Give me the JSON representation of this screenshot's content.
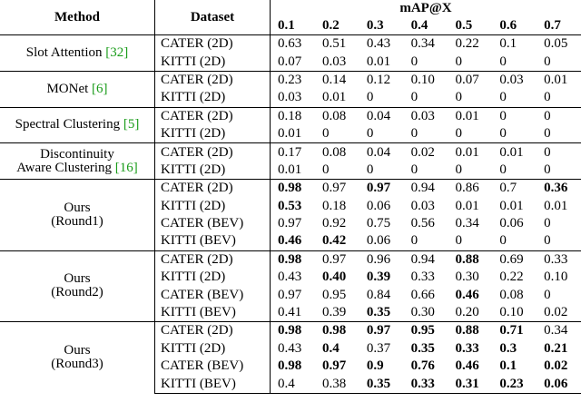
{
  "header": {
    "method": "Method",
    "dataset": "Dataset",
    "metric": "mAP@X",
    "thresholds": [
      "0.1",
      "0.2",
      "0.3",
      "0.4",
      "0.5",
      "0.6",
      "0.7"
    ]
  },
  "groups": [
    {
      "method": [
        "Slot Attention"
      ],
      "ref": "[32]",
      "rows": [
        {
          "dataset": "CATER (2D)",
          "values": [
            "0.63",
            "0.51",
            "0.43",
            "0.34",
            "0.22",
            "0.1",
            "0.05"
          ],
          "bold": []
        },
        {
          "dataset": "KITTI (2D)",
          "values": [
            "0.07",
            "0.03",
            "0.01",
            "0",
            "0",
            "0",
            "0"
          ],
          "bold": []
        }
      ]
    },
    {
      "method": [
        "MONet"
      ],
      "ref": "[6]",
      "rows": [
        {
          "dataset": "CATER (2D)",
          "values": [
            "0.23",
            "0.14",
            "0.12",
            "0.10",
            "0.07",
            "0.03",
            "0.01"
          ],
          "bold": []
        },
        {
          "dataset": "KITTI (2D)",
          "values": [
            "0.03",
            "0.01",
            "0",
            "0",
            "0",
            "0",
            "0"
          ],
          "bold": []
        }
      ]
    },
    {
      "method": [
        "Spectral Clustering"
      ],
      "ref": "[5]",
      "rows": [
        {
          "dataset": "CATER (2D)",
          "values": [
            "0.18",
            "0.08",
            "0.04",
            "0.03",
            "0.01",
            "0",
            "0"
          ],
          "bold": []
        },
        {
          "dataset": "KITTI (2D)",
          "values": [
            "0.01",
            "0",
            "0",
            "0",
            "0",
            "0",
            "0"
          ],
          "bold": []
        }
      ]
    },
    {
      "method": [
        "Discontinuity",
        "Aware Clustering"
      ],
      "ref": "[16]",
      "rows": [
        {
          "dataset": "CATER (2D)",
          "values": [
            "0.17",
            "0.08",
            "0.04",
            "0.02",
            "0.01",
            "0.01",
            "0"
          ],
          "bold": []
        },
        {
          "dataset": "KITTI (2D)",
          "values": [
            "0.01",
            "0",
            "0",
            "0",
            "0",
            "0",
            "0"
          ],
          "bold": []
        }
      ]
    },
    {
      "method": [
        "Ours",
        "(Round1)"
      ],
      "rows": [
        {
          "dataset": "CATER (2D)",
          "values": [
            "0.98",
            "0.97",
            "0.97",
            "0.94",
            "0.86",
            "0.7",
            "0.36"
          ],
          "bold": [
            0,
            2,
            6
          ]
        },
        {
          "dataset": "KITTI (2D)",
          "values": [
            "0.53",
            "0.18",
            "0.06",
            "0.03",
            "0.01",
            "0.01",
            "0.01"
          ],
          "bold": [
            0
          ]
        },
        {
          "dataset": "CATER (BEV)",
          "values": [
            "0.97",
            "0.92",
            "0.75",
            "0.56",
            "0.34",
            "0.06",
            "0"
          ],
          "bold": []
        },
        {
          "dataset": "KITTI (BEV)",
          "values": [
            "0.46",
            "0.42",
            "0.06",
            "0",
            "0",
            "0",
            "0"
          ],
          "bold": [
            0,
            1
          ]
        }
      ]
    },
    {
      "method": [
        "Ours",
        "(Round2)"
      ],
      "rows": [
        {
          "dataset": "CATER (2D)",
          "values": [
            "0.98",
            "0.97",
            "0.96",
            "0.94",
            "0.88",
            "0.69",
            "0.33"
          ],
          "bold": [
            0,
            4
          ]
        },
        {
          "dataset": "KITTI (2D)",
          "values": [
            "0.43",
            "0.40",
            "0.39",
            "0.33",
            "0.30",
            "0.22",
            "0.10"
          ],
          "bold": [
            1,
            2
          ]
        },
        {
          "dataset": "CATER (BEV)",
          "values": [
            "0.97",
            "0.95",
            "0.84",
            "0.66",
            "0.46",
            "0.08",
            "0"
          ],
          "bold": [
            4
          ]
        },
        {
          "dataset": "KITTI (BEV)",
          "values": [
            "0.41",
            "0.39",
            "0.35",
            "0.30",
            "0.20",
            "0.10",
            "0.02"
          ],
          "bold": [
            2
          ]
        }
      ]
    },
    {
      "method": [
        "Ours",
        "(Round3)"
      ],
      "rows": [
        {
          "dataset": "CATER (2D)",
          "values": [
            "0.98",
            "0.98",
            "0.97",
            "0.95",
            "0.88",
            "0.71",
            "0.34"
          ],
          "bold": [
            0,
            1,
            2,
            3,
            4,
            5
          ]
        },
        {
          "dataset": "KITTI (2D)",
          "values": [
            "0.43",
            "0.4",
            "0.37",
            "0.35",
            "0.33",
            "0.3",
            "0.21"
          ],
          "bold": [
            1,
            3,
            4,
            5,
            6
          ]
        },
        {
          "dataset": "CATER (BEV)",
          "values": [
            "0.98",
            "0.97",
            "0.9",
            "0.76",
            "0.46",
            "0.1",
            "0.02"
          ],
          "bold": [
            0,
            1,
            2,
            3,
            4,
            5,
            6
          ]
        },
        {
          "dataset": "KITTI (BEV)",
          "values": [
            "0.4",
            "0.38",
            "0.35",
            "0.33",
            "0.31",
            "0.23",
            "0.06"
          ],
          "bold": [
            2,
            3,
            4,
            5,
            6
          ]
        }
      ]
    }
  ]
}
